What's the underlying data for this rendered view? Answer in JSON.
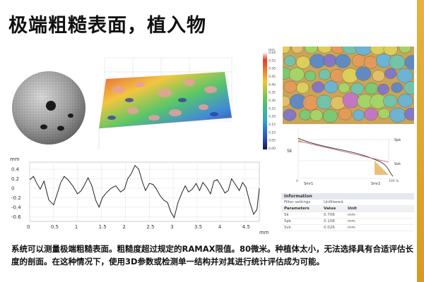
{
  "title": "极端粗糙表面，植入物",
  "colorbar": {
    "labels": [
      "mm",
      "0.64",
      "0.55",
      "0.50",
      "0.45",
      "0.40",
      "0.35",
      "0.30",
      "0.25",
      "0.20",
      "0.15",
      "0.10",
      "0.05",
      "0.00"
    ]
  },
  "abbott": {
    "labels": {
      "sk": "Sk",
      "spk": "Spk",
      "svk": "Svk",
      "smr1": "Smr1",
      "smr2": "Smr2",
      "x0": "0",
      "x100": "100 %"
    }
  },
  "info_table": {
    "header": "Information",
    "filter_label": "Filter settings",
    "filter_value": "Unfiltered.",
    "param_header": [
      "Parameters",
      "Value",
      "Unit"
    ],
    "rows": [
      {
        "name": "Sk",
        "value": "0.706",
        "unit": "mm"
      },
      {
        "name": "Spk",
        "value": "0.108",
        "unit": "mm"
      },
      {
        "name": "Svk",
        "value": "0.026",
        "unit": "mm"
      }
    ]
  },
  "chart_data": {
    "type": "line",
    "title": "",
    "ylabel": "mm",
    "xlabel": "mm",
    "x_ticks": [
      "0",
      "0.5",
      "1",
      "1.5",
      "2",
      "2.5",
      "3",
      "3.5",
      "4",
      "4.5"
    ],
    "y_ticks": [
      "0.4",
      "0.2",
      "0",
      "-0.2",
      "-0.4",
      "-0.6"
    ],
    "xlim": [
      0,
      4.8
    ],
    "ylim": [
      -0.7,
      0.55
    ],
    "series": [
      {
        "x": [
          0,
          0.08,
          0.15,
          0.22,
          0.3,
          0.4,
          0.5,
          0.58,
          0.65,
          0.72,
          0.8,
          0.9,
          1.0,
          1.08,
          1.15,
          1.22,
          1.3,
          1.38,
          1.45,
          1.52,
          1.6,
          1.7,
          1.8,
          1.9,
          1.98,
          2.05,
          2.12,
          2.2,
          2.28,
          2.35,
          2.42,
          2.5,
          2.58,
          2.65,
          2.72,
          2.8,
          2.88,
          2.95,
          3.02,
          3.1,
          3.18,
          3.25,
          3.32,
          3.4,
          3.48,
          3.55,
          3.62,
          3.7,
          3.78,
          3.85,
          3.92,
          4.0,
          4.08,
          4.15,
          4.22,
          4.3,
          4.38,
          4.45,
          4.52,
          4.6,
          4.68,
          4.75,
          4.8
        ],
        "y": [
          0.18,
          0.25,
          0.1,
          -0.02,
          0.15,
          -0.25,
          -0.35,
          -0.1,
          0.12,
          0.25,
          0.18,
          0.05,
          -0.12,
          -0.05,
          0.08,
          0.22,
          0.05,
          -0.25,
          -0.4,
          -0.2,
          -0.1,
          0.0,
          0.05,
          -0.08,
          -0.02,
          0.2,
          0.3,
          0.48,
          0.4,
          0.15,
          -0.05,
          0.1,
          0.08,
          -0.02,
          -0.15,
          -0.25,
          -0.3,
          -0.5,
          -0.62,
          -0.3,
          -0.1,
          0.05,
          -0.08,
          -0.02,
          0.1,
          -0.05,
          0.12,
          0.02,
          -0.12,
          0.15,
          0.18,
          0.05,
          -0.1,
          -0.05,
          0.2,
          0.08,
          -0.05,
          0.12,
          0.02,
          -0.3,
          -0.55,
          -0.45,
          0.0
        ]
      }
    ]
  },
  "caption": "系统可以测量极端粗糙表面。粗糙度超过规定的RAMAX限值。80微米。种植体太小，无法选择具有合适评估长度的剖面。在这种情况下，使用3D参数或检测单一结构并对其进行统计评估成为可能。"
}
